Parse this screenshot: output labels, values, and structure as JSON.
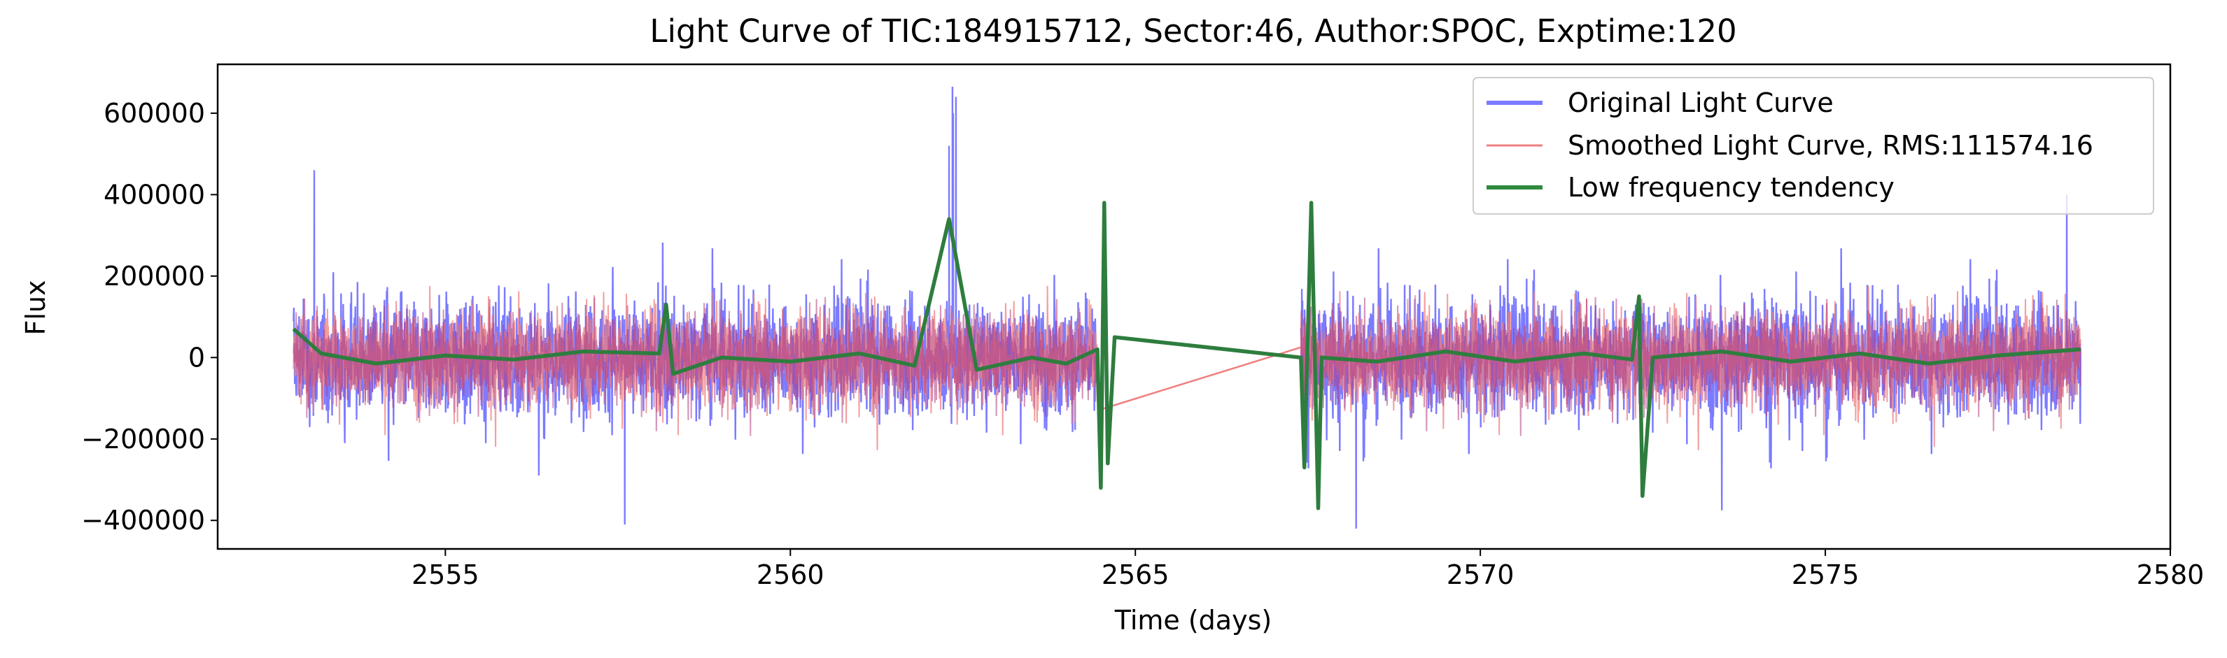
{
  "chart_data": {
    "type": "line",
    "title": "Light Curve of TIC:184915712, Sector:46, Author:SPOC, Exptime:120",
    "xlabel": "Time (days)",
    "ylabel": "Flux",
    "xlim": [
      2551.7,
      2580
    ],
    "ylim": [
      -470000,
      720000
    ],
    "xticks": [
      2555,
      2560,
      2565,
      2570,
      2575,
      2580
    ],
    "xtick_labels": [
      "2555",
      "2560",
      "2565",
      "2570",
      "2575",
      "2580"
    ],
    "yticks": [
      -400000,
      -200000,
      0,
      200000,
      400000,
      600000
    ],
    "ytick_labels": [
      "−400000",
      "−200000",
      "0",
      "200000",
      "400000",
      "600000"
    ],
    "grid": false,
    "legend": "top-right",
    "segments": [
      {
        "start": 2552.8,
        "end": 2564.45
      },
      {
        "start": 2567.4,
        "end": 2578.7
      }
    ],
    "series": [
      {
        "name": "Original Light Curve",
        "color": "#7b7bff",
        "kind": "noisy band",
        "typical_range": [
          -250000,
          250000
        ],
        "extremes": [
          [
            2553.1,
            460000
          ],
          [
            2557.6,
            -410000
          ],
          [
            2562.35,
            665000
          ],
          [
            2568.2,
            -420000
          ],
          [
            2573.5,
            -375000
          ],
          [
            2578.5,
            400000
          ]
        ]
      },
      {
        "name": "Smoothed Light Curve, RMS:111574.16",
        "color": "#ef7f7f",
        "kind": "noisy band",
        "typical_range": [
          -230000,
          230000
        ],
        "gap_connector": [
          [
            2564.45,
            -130000
          ],
          [
            2567.4,
            25000
          ]
        ]
      },
      {
        "name": "Low frequency tendency",
        "color": "#2e7d3e",
        "kind": "trend",
        "points": [
          [
            2552.8,
            70000
          ],
          [
            2553.2,
            10000
          ],
          [
            2554.0,
            -15000
          ],
          [
            2555.0,
            5000
          ],
          [
            2556.0,
            -5000
          ],
          [
            2557.0,
            15000
          ],
          [
            2558.1,
            10000
          ],
          [
            2558.2,
            130000
          ],
          [
            2558.3,
            -40000
          ],
          [
            2559.0,
            0
          ],
          [
            2560.0,
            -10000
          ],
          [
            2561.0,
            10000
          ],
          [
            2561.8,
            -20000
          ],
          [
            2562.3,
            340000
          ],
          [
            2562.7,
            -30000
          ],
          [
            2563.5,
            0
          ],
          [
            2564.0,
            -15000
          ],
          [
            2564.45,
            20000
          ],
          [
            2564.5,
            -320000
          ],
          [
            2564.55,
            380000
          ],
          [
            2564.6,
            -260000
          ],
          [
            2564.7,
            50000
          ],
          [
            2567.4,
            0
          ],
          [
            2567.45,
            -270000
          ],
          [
            2567.55,
            380000
          ],
          [
            2567.65,
            -370000
          ],
          [
            2567.7,
            0
          ],
          [
            2568.5,
            -10000
          ],
          [
            2569.5,
            15000
          ],
          [
            2570.5,
            -10000
          ],
          [
            2571.5,
            10000
          ],
          [
            2572.2,
            -5000
          ],
          [
            2572.3,
            150000
          ],
          [
            2572.35,
            -340000
          ],
          [
            2572.5,
            0
          ],
          [
            2573.5,
            15000
          ],
          [
            2574.5,
            -10000
          ],
          [
            2575.5,
            10000
          ],
          [
            2576.5,
            -15000
          ],
          [
            2577.5,
            5000
          ],
          [
            2578.7,
            20000
          ]
        ]
      }
    ]
  }
}
